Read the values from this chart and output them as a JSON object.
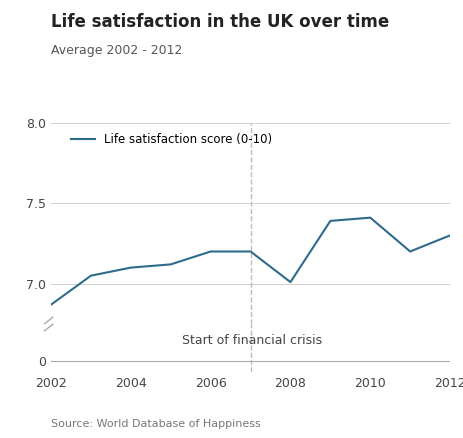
{
  "title": "Life satisfaction in the UK over time",
  "subtitle": "Average 2002 - 2012",
  "source": "Source: World Database of Happiness",
  "legend_label": "Life satisfaction score (0-10)",
  "line_color": "#2e6b8a",
  "years": [
    2002,
    2003,
    2004,
    2005,
    2006,
    2007,
    2008,
    2009,
    2010,
    2011,
    2012
  ],
  "values": [
    6.87,
    7.05,
    7.1,
    7.12,
    7.2,
    7.2,
    7.01,
    7.39,
    7.41,
    7.2,
    7.3
  ],
  "xlim": [
    2002,
    2012
  ],
  "ylim_upper": [
    6.75,
    8.0
  ],
  "ylim_lower": [
    -0.15,
    0.5
  ],
  "yticks_upper": [
    7.0,
    7.5,
    8.0
  ],
  "ytick_lower": [
    0
  ],
  "xticks": [
    2002,
    2004,
    2006,
    2008,
    2010,
    2012
  ],
  "crisis_year": 2007,
  "crisis_label": "Start of financial crisis",
  "background_color": "#ffffff",
  "grid_color": "#d0d0d0",
  "axis_color": "#aaaaaa",
  "title_fontsize": 12,
  "subtitle_fontsize": 9,
  "tick_fontsize": 9,
  "legend_fontsize": 8.5,
  "source_fontsize": 8,
  "annotation_fontsize": 9
}
